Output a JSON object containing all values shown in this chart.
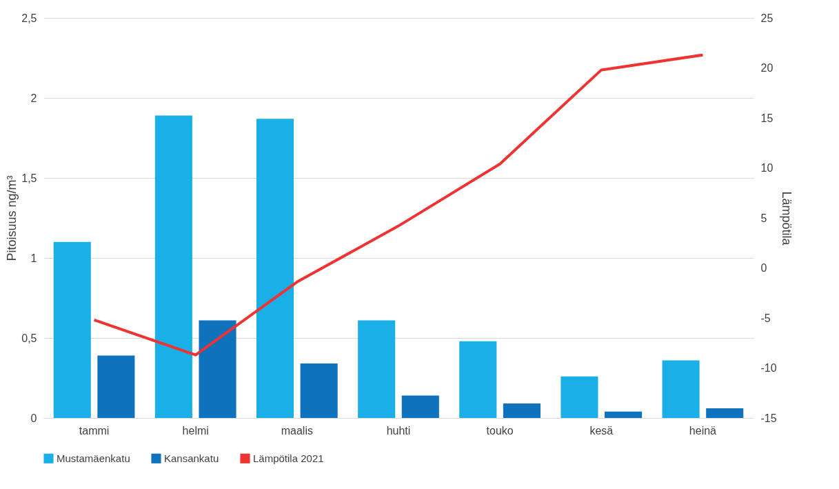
{
  "chart_data": {
    "type": "bar",
    "ylabel": "Pitoisuus ng/m³",
    "y2label": "Lämpötila",
    "categories": [
      "tammi",
      "helmi",
      "maalis",
      "huhti",
      "touko",
      "kesä",
      "heinä"
    ],
    "series": [
      {
        "name": "Mustamäenkatu",
        "color": "#1aafe6",
        "values": [
          1.1,
          1.89,
          1.87,
          0.61,
          0.48,
          0.26,
          0.36
        ]
      },
      {
        "name": "Kansankatu",
        "color": "#0e72bd",
        "values": [
          0.39,
          0.61,
          0.34,
          0.14,
          0.09,
          0.04,
          0.06
        ]
      },
      {
        "name": "Lämpötila 2021",
        "type": "line",
        "axis": "y2",
        "color": "#ee3333",
        "values": [
          -5.2,
          -8.7,
          -1.4,
          4.2,
          10.4,
          19.8,
          21.3
        ]
      }
    ],
    "ylim": [
      0,
      2.5
    ],
    "yticks": [
      0,
      {
        "value": 0.5,
        "label": "0,5"
      },
      1,
      {
        "value": 1.5,
        "label": "1,5"
      },
      2,
      {
        "value": 2.5,
        "label": "2,5"
      }
    ],
    "y2lim": [
      -15,
      25
    ],
    "y2ticks": [
      -15,
      -10,
      -5,
      0,
      5,
      10,
      15,
      20,
      25
    ],
    "grid": "y",
    "legend": "bottom"
  }
}
